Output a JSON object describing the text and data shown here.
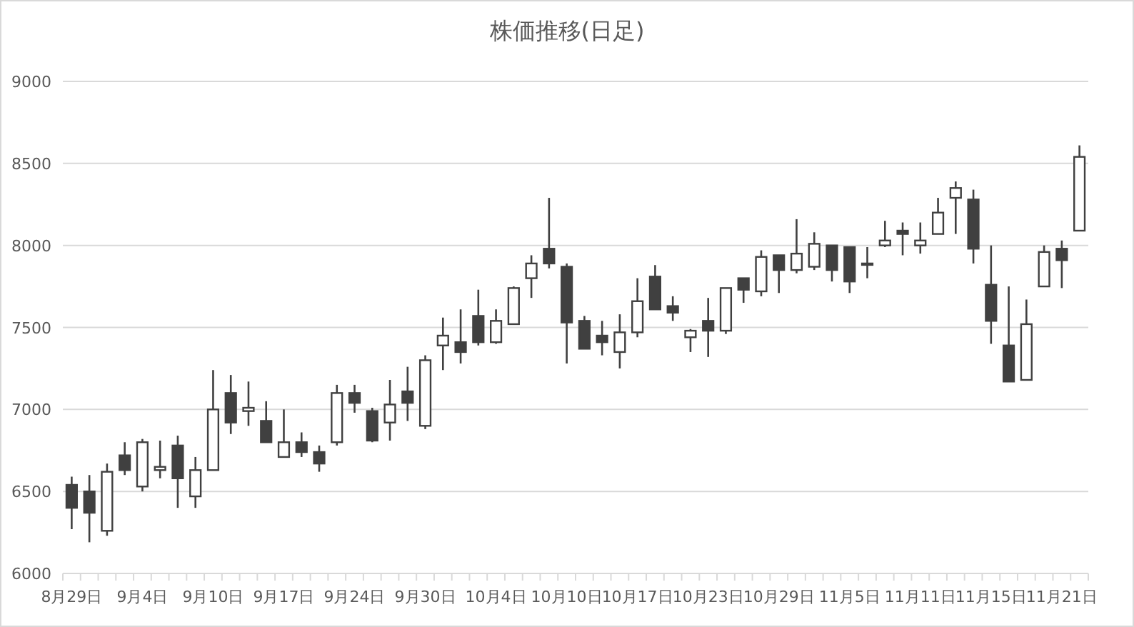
{
  "chart_data": {
    "type": "candlestick",
    "title": "株価推移(日足)",
    "categories": [
      "8月29日",
      null,
      null,
      null,
      "9月4日",
      null,
      null,
      null,
      "9月10日",
      null,
      null,
      null,
      "9月17日",
      null,
      null,
      null,
      "9月24日",
      null,
      null,
      null,
      "9月30日",
      null,
      null,
      null,
      "10月4日",
      null,
      null,
      null,
      "10月10日",
      null,
      null,
      null,
      "10月17日",
      null,
      null,
      null,
      "10月23日",
      null,
      null,
      null,
      "10月29日",
      null,
      null,
      null,
      "11月5日",
      null,
      null,
      null,
      "11月11日",
      null,
      null,
      null,
      "11月15日",
      null,
      null,
      null,
      "11月21日",
      null
    ],
    "ohlc": [
      [
        6540,
        6590,
        6270,
        6400
      ],
      [
        6500,
        6600,
        6190,
        6370
      ],
      [
        6260,
        6670,
        6230,
        6620
      ],
      [
        6720,
        6800,
        6600,
        6630
      ],
      [
        6530,
        6820,
        6500,
        6800
      ],
      [
        6630,
        6810,
        6580,
        6650
      ],
      [
        6780,
        6840,
        6400,
        6580
      ],
      [
        6470,
        6710,
        6400,
        6630
      ],
      [
        6630,
        7240,
        6630,
        7000
      ],
      [
        7100,
        7210,
        6850,
        6920
      ],
      [
        6990,
        7170,
        6900,
        7010
      ],
      [
        6930,
        7050,
        6800,
        6800
      ],
      [
        6710,
        7000,
        6710,
        6800
      ],
      [
        6800,
        6860,
        6710,
        6740
      ],
      [
        6740,
        6780,
        6620,
        6670
      ],
      [
        6800,
        7150,
        6780,
        7100
      ],
      [
        7100,
        7150,
        6980,
        7040
      ],
      [
        6990,
        7010,
        6800,
        6810
      ],
      [
        6920,
        7180,
        6810,
        7030
      ],
      [
        7110,
        7260,
        6930,
        7040
      ],
      [
        6900,
        7330,
        6880,
        7300
      ],
      [
        7390,
        7560,
        7240,
        7450
      ],
      [
        7410,
        7610,
        7280,
        7350
      ],
      [
        7570,
        7730,
        7390,
        7410
      ],
      [
        7410,
        7610,
        7400,
        7540
      ],
      [
        7520,
        7750,
        7520,
        7740
      ],
      [
        7800,
        7940,
        7680,
        7890
      ],
      [
        7980,
        8290,
        7860,
        7890
      ],
      [
        7870,
        7890,
        7280,
        7530
      ],
      [
        7540,
        7570,
        7370,
        7370
      ],
      [
        7450,
        7540,
        7330,
        7410
      ],
      [
        7350,
        7580,
        7250,
        7470
      ],
      [
        7470,
        7800,
        7440,
        7660
      ],
      [
        7810,
        7880,
        7610,
        7610
      ],
      [
        7630,
        7690,
        7540,
        7590
      ],
      [
        7440,
        7490,
        7350,
        7480
      ],
      [
        7540,
        7680,
        7320,
        7480
      ],
      [
        7480,
        7740,
        7460,
        7740
      ],
      [
        7800,
        7800,
        7650,
        7730
      ],
      [
        7720,
        7970,
        7690,
        7930
      ],
      [
        7940,
        7940,
        7710,
        7850
      ],
      [
        7850,
        8160,
        7830,
        7950
      ],
      [
        7870,
        8080,
        7850,
        8010
      ],
      [
        8000,
        8000,
        7780,
        7850
      ],
      [
        7990,
        7990,
        7710,
        7780
      ],
      [
        7890,
        7990,
        7800,
        7890
      ],
      [
        8000,
        8150,
        7990,
        8030
      ],
      [
        8090,
        8140,
        7940,
        8070
      ],
      [
        8000,
        8140,
        7950,
        8030
      ],
      [
        8070,
        8290,
        8070,
        8200
      ],
      [
        8290,
        8390,
        8070,
        8350
      ],
      [
        8280,
        8340,
        7890,
        7980
      ],
      [
        7760,
        8000,
        7400,
        7540
      ],
      [
        7390,
        7750,
        7170,
        7170
      ],
      [
        7180,
        7670,
        7180,
        7520
      ],
      [
        7750,
        8000,
        7750,
        7960
      ],
      [
        7980,
        8030,
        7740,
        7910
      ],
      [
        8090,
        8610,
        8090,
        8540
      ]
    ],
    "ylim": [
      6000,
      9000
    ],
    "yticks": [
      6000,
      6500,
      7000,
      7500,
      8000,
      8500,
      9000
    ],
    "grid": "y"
  }
}
